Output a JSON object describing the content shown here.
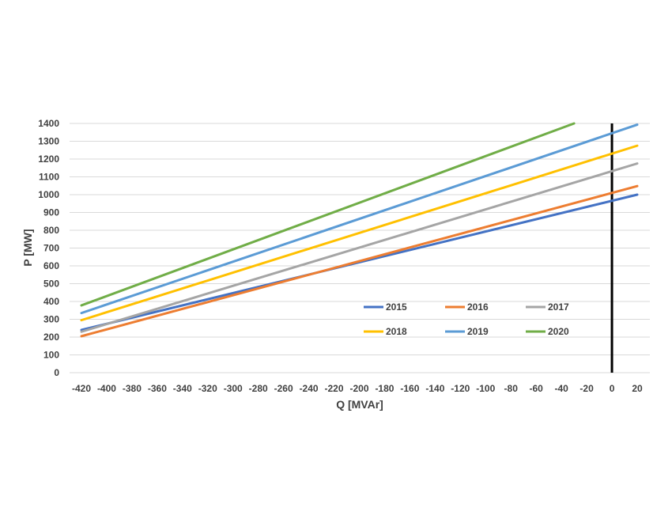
{
  "chart_data": {
    "type": "line",
    "title": "",
    "xlabel": "Q [MVAr]",
    "ylabel": "P [MW]",
    "xlim": [
      -420,
      20
    ],
    "ylim": [
      0,
      1400
    ],
    "x_ticks": [
      -420,
      -400,
      -380,
      -360,
      -340,
      -320,
      -300,
      -280,
      -260,
      -240,
      -220,
      -200,
      -180,
      -160,
      -140,
      -120,
      -100,
      -80,
      -60,
      -40,
      -20,
      0,
      20
    ],
    "y_ticks": [
      0,
      100,
      200,
      300,
      400,
      500,
      600,
      700,
      800,
      900,
      1000,
      1100,
      1200,
      1300,
      1400
    ],
    "grid": "horizontal",
    "vertical_reference_line": {
      "x": 0,
      "color": "#000000"
    },
    "legend_position": "inside-bottom-right",
    "series": [
      {
        "name": "2015",
        "color": "#4472C4",
        "x": [
          -420,
          20
        ],
        "y": [
          240,
          1000
        ]
      },
      {
        "name": "2016",
        "color": "#ED7D31",
        "x": [
          -420,
          20
        ],
        "y": [
          205,
          1048
        ]
      },
      {
        "name": "2017",
        "color": "#A5A5A5",
        "x": [
          -420,
          20
        ],
        "y": [
          230,
          1175
        ]
      },
      {
        "name": "2018",
        "color": "#FFC000",
        "x": [
          -420,
          20
        ],
        "y": [
          295,
          1275
        ]
      },
      {
        "name": "2019",
        "color": "#5B9BD5",
        "x": [
          -420,
          20
        ],
        "y": [
          335,
          1393
        ]
      },
      {
        "name": "2020",
        "color": "#70AD47",
        "x": [
          -420,
          -30
        ],
        "y": [
          378,
          1400
        ]
      }
    ]
  }
}
